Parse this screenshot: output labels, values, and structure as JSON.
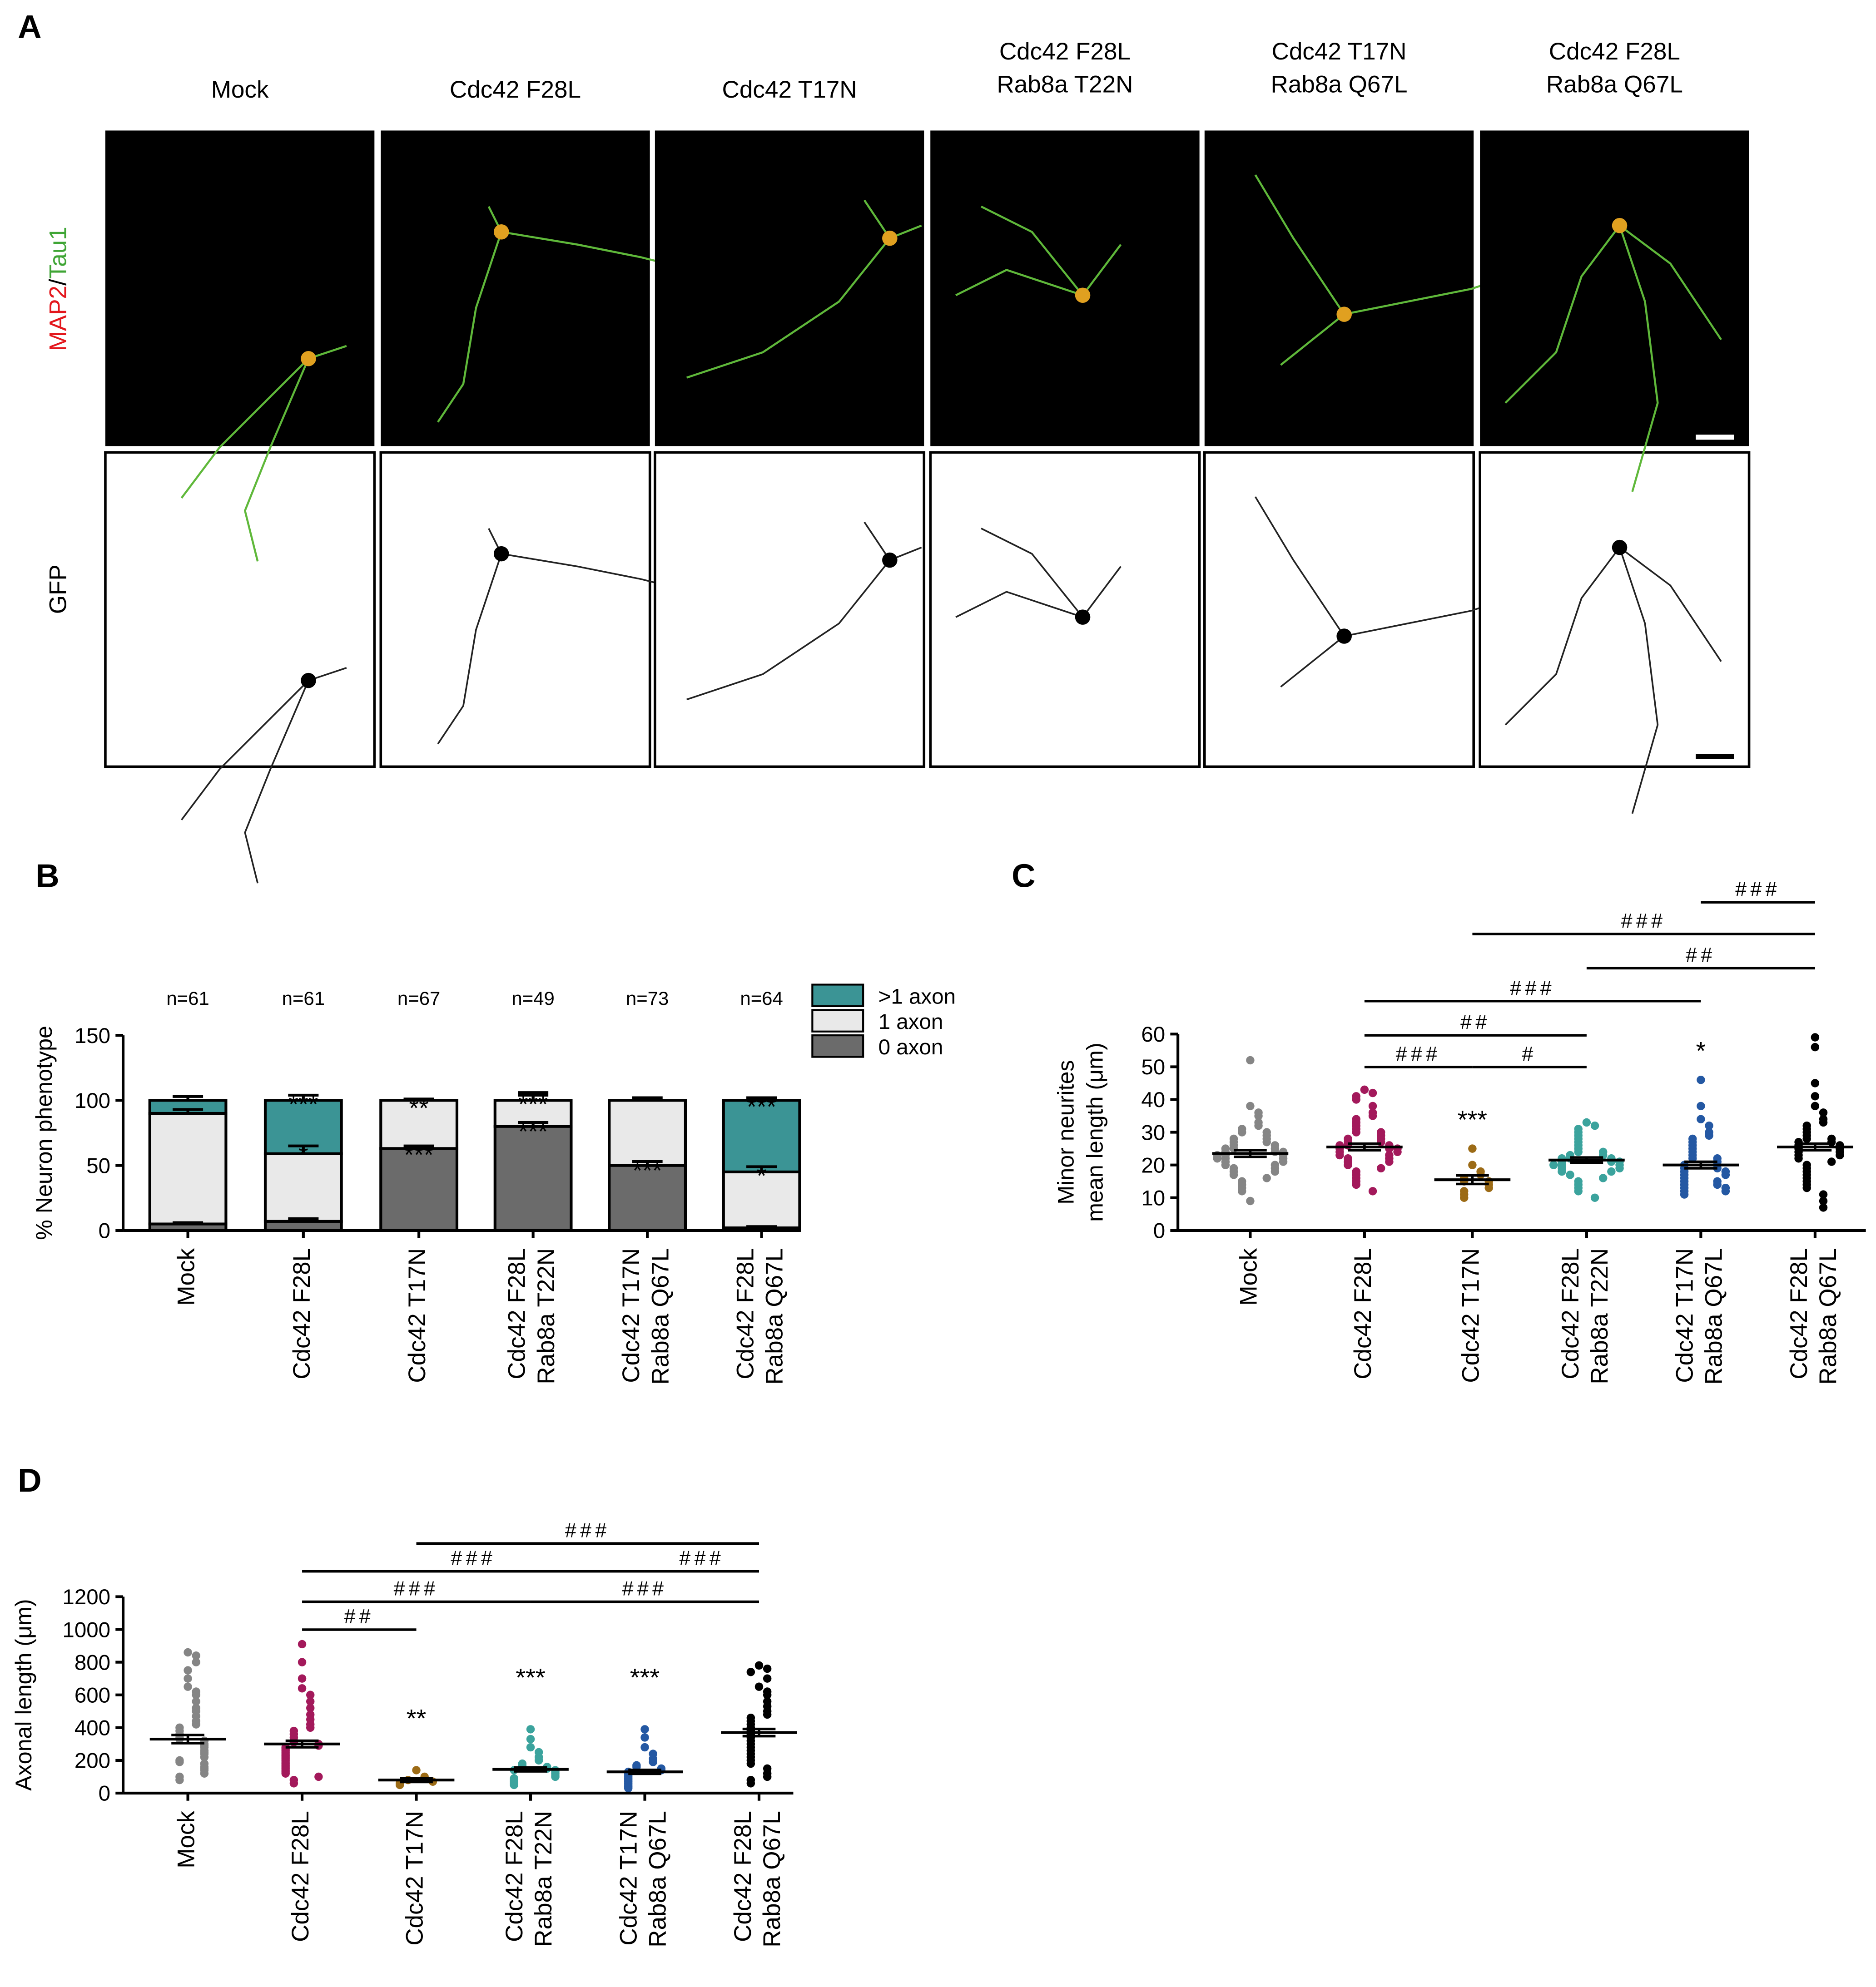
{
  "panel_a": {
    "label": "A",
    "columns": [
      [
        "Mock"
      ],
      [
        "Cdc42 F28L"
      ],
      [
        "Cdc42 T17N"
      ],
      [
        "Cdc42 F28L",
        "Rab8a T22N"
      ],
      [
        "Cdc42 T17N",
        "Rab8a Q67L"
      ],
      [
        "Cdc42 F28L",
        "Rab8a Q67L"
      ]
    ],
    "top_row_label": {
      "red": "MAP2",
      "separator": "/",
      "green": "Tau1"
    },
    "bottom_row_label": "GFP"
  },
  "chart_data": [
    {
      "type": "stacked_bar",
      "panel": "B",
      "ylabel": "% Neuron phenotype",
      "categories": [
        [
          "Mock"
        ],
        [
          "Cdc42 F28L"
        ],
        [
          "Cdc42 T17N"
        ],
        [
          "Cdc42 F28L",
          "Rab8a T22N"
        ],
        [
          "Cdc42 T17N",
          "Rab8a Q67L"
        ],
        [
          "Cdc42 F28L",
          "Rab8a Q67L"
        ]
      ],
      "n_labels": [
        "n=61",
        "n=61",
        "n=67",
        "n=49",
        "n=73",
        "n=64"
      ],
      "ylim": [
        0,
        150
      ],
      "yticks": [
        0,
        50,
        100,
        150
      ],
      "series": [
        {
          "name": "0 axon",
          "color": "#6b6b6b",
          "values": [
            5,
            7,
            63,
            80,
            50,
            2
          ],
          "errors": [
            1,
            2,
            2,
            3,
            3,
            1
          ],
          "significance": [
            null,
            null,
            "***",
            "***",
            "***",
            null
          ]
        },
        {
          "name": "1 axon",
          "color": "#e9e9e9",
          "values": [
            85,
            52,
            37,
            20,
            50,
            43
          ],
          "errors": [
            3,
            6,
            1,
            4,
            2,
            4
          ],
          "significance": [
            null,
            "*",
            "**",
            "***",
            null,
            "*"
          ]
        },
        {
          "name": ">1 axon",
          "color": "#3b9495",
          "values": [
            10,
            41,
            0,
            0,
            0,
            55
          ],
          "errors": [
            3,
            4,
            1,
            6,
            2,
            2
          ],
          "significance": [
            null,
            "***",
            null,
            null,
            null,
            "***"
          ]
        }
      ]
    },
    {
      "type": "dot_plot",
      "panel": "C",
      "ylabel": [
        "Minor neurites",
        "mean length (μm)"
      ],
      "categories": [
        [
          "Mock"
        ],
        [
          "Cdc42 F28L"
        ],
        [
          "Cdc42 T17N"
        ],
        [
          "Cdc42 F28L",
          "Rab8a T22N"
        ],
        [
          "Cdc42 T17N",
          "Rab8a Q67L"
        ],
        [
          "Cdc42 F28L",
          "Rab8a Q67L"
        ]
      ],
      "ylim": [
        0,
        60
      ],
      "yticks": [
        0,
        10,
        20,
        30,
        40,
        50,
        60
      ],
      "colors": [
        "#858585",
        "#a3195b",
        "#9c6b16",
        "#3ba39d",
        "#2458a3",
        "#000000"
      ],
      "values": [
        [
          52,
          38,
          36,
          35,
          33,
          32,
          31,
          30,
          30,
          29,
          28,
          28,
          27,
          27,
          26,
          26,
          25,
          25,
          25,
          24,
          24,
          24,
          23,
          23,
          23,
          22,
          22,
          22,
          21,
          21,
          20,
          20,
          19,
          19,
          18,
          18,
          17,
          16,
          15,
          14,
          13,
          12,
          9
        ],
        [
          43,
          42,
          41,
          40,
          38,
          36,
          35,
          34,
          33,
          32,
          31,
          30,
          30,
          29,
          28,
          28,
          27,
          27,
          26,
          26,
          26,
          25,
          25,
          25,
          24,
          24,
          23,
          23,
          22,
          22,
          21,
          21,
          20,
          19,
          18,
          17,
          16,
          15,
          14,
          12
        ],
        [
          25,
          20,
          18,
          17,
          16,
          15,
          15,
          14,
          13,
          12,
          11,
          10
        ],
        [
          33,
          32,
          31,
          30,
          29,
          28,
          27,
          26,
          25,
          24,
          24,
          23,
          23,
          22,
          22,
          22,
          21,
          21,
          21,
          20,
          20,
          20,
          19,
          19,
          18,
          18,
          17,
          16,
          15,
          14,
          13,
          12,
          10
        ],
        [
          46,
          38,
          34,
          32,
          30,
          29,
          28,
          27,
          26,
          25,
          24,
          23,
          22,
          22,
          21,
          20,
          20,
          19,
          19,
          18,
          18,
          17,
          17,
          16,
          15,
          15,
          14,
          14,
          13,
          13,
          12,
          12,
          11
        ],
        [
          59,
          56,
          45,
          41,
          38,
          36,
          34,
          33,
          32,
          31,
          30,
          29,
          28,
          28,
          27,
          27,
          26,
          26,
          25,
          25,
          24,
          24,
          23,
          23,
          22,
          21,
          20,
          19,
          18,
          17,
          16,
          15,
          14,
          13,
          11,
          9,
          7
        ]
      ],
      "means": [
        23.5,
        25.5,
        15.5,
        21.5,
        20,
        25.5
      ],
      "sem": [
        1,
        1,
        1.3,
        0.8,
        1,
        1
      ],
      "significance": [
        null,
        null,
        "***",
        null,
        "*",
        null
      ],
      "comparisons": [
        {
          "from": 4,
          "to": 5,
          "label": "###"
        },
        {
          "from": 2,
          "to": 5,
          "label": "###"
        },
        {
          "from": 3,
          "to": 5,
          "label": "##"
        },
        {
          "from": 1,
          "to": 4,
          "label": "###"
        },
        {
          "from": 1,
          "to": 3,
          "label": "##"
        },
        {
          "from": 1,
          "to": 2,
          "label": "###"
        },
        {
          "from": 2,
          "to": 3,
          "label": "#"
        }
      ]
    },
    {
      "type": "dot_plot",
      "panel": "D",
      "ylabel": [
        "Axonal length (μm)"
      ],
      "categories": [
        [
          "Mock"
        ],
        [
          "Cdc42 F28L"
        ],
        [
          "Cdc42 T17N"
        ],
        [
          "Cdc42 F28L",
          "Rab8a T22N"
        ],
        [
          "Cdc42 T17N",
          "Rab8a Q67L"
        ],
        [
          "Cdc42 F28L",
          "Rab8a Q67L"
        ]
      ],
      "ylim": [
        0,
        1200
      ],
      "yticks": [
        0,
        200,
        400,
        600,
        800,
        1000,
        1200
      ],
      "colors": [
        "#858585",
        "#a3195b",
        "#9c6b16",
        "#3ba39d",
        "#2458a3",
        "#000000"
      ],
      "values": [
        [
          860,
          840,
          800,
          750,
          700,
          650,
          620,
          600,
          560,
          520,
          500,
          470,
          440,
          420,
          400,
          380,
          360,
          340,
          330,
          320,
          300,
          290,
          280,
          260,
          250,
          240,
          220,
          200,
          190,
          180,
          160,
          150,
          140,
          120,
          100,
          80
        ],
        [
          910,
          800,
          700,
          640,
          600,
          560,
          520,
          480,
          450,
          420,
          400,
          380,
          360,
          340,
          320,
          310,
          300,
          290,
          280,
          270,
          260,
          250,
          240,
          230,
          220,
          210,
          200,
          190,
          180,
          170,
          160,
          150,
          140,
          130,
          120,
          100,
          80,
          60
        ],
        [
          140,
          100,
          90,
          80,
          70,
          60,
          50
        ],
        [
          390,
          330,
          280,
          250,
          220,
          200,
          180,
          170,
          160,
          150,
          140,
          140,
          130,
          120,
          110,
          100,
          90,
          80,
          70,
          60,
          50
        ],
        [
          390,
          340,
          280,
          240,
          210,
          190,
          170,
          160,
          150,
          140,
          130,
          120,
          110,
          100,
          90,
          80,
          70,
          60,
          50,
          40,
          30
        ],
        [
          780,
          760,
          740,
          700,
          650,
          620,
          600,
          560,
          530,
          500,
          480,
          460,
          440,
          420,
          400,
          380,
          360,
          340,
          320,
          300,
          280,
          260,
          240,
          220,
          200,
          180,
          150,
          120,
          100,
          80,
          60
        ]
      ],
      "means": [
        330,
        300,
        80,
        145,
        130,
        370
      ],
      "sem": [
        25,
        20,
        12,
        12,
        12,
        22
      ],
      "significance": [
        null,
        null,
        "**",
        "***",
        "***",
        null
      ],
      "comparisons": [
        {
          "from": 2,
          "to": 5,
          "label": "###"
        },
        {
          "from": 1,
          "to": 4,
          "label": "###"
        },
        {
          "from": 4,
          "to": 5,
          "label": "###"
        },
        {
          "from": 1,
          "to": 3,
          "label": "###"
        },
        {
          "from": 3,
          "to": 5,
          "label": "###"
        },
        {
          "from": 1,
          "to": 2,
          "label": "##"
        }
      ]
    }
  ]
}
